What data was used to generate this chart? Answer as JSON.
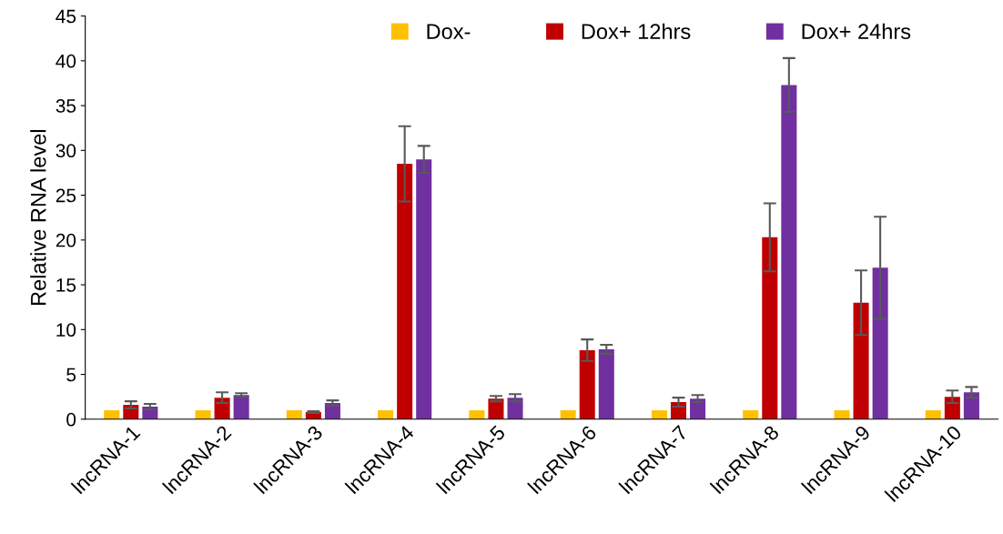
{
  "chart_data": {
    "type": "bar",
    "ylabel": "Relative RNA level",
    "categories": [
      "lncRNA-1",
      "lncRNA-2",
      "lncRNA-3",
      "lncRNA-4",
      "lncRNA-5",
      "lncRNA-6",
      "lncRNA-7",
      "lncRNA-8",
      "lncRNA-9",
      "lncRNA-10"
    ],
    "series": [
      {
        "name": "Dox-",
        "color": "#ffc000",
        "values": [
          1,
          1,
          1,
          1,
          1,
          1,
          1,
          1,
          1,
          1
        ]
      },
      {
        "name": "Dox+ 12hrs",
        "color": "#c00000",
        "values": [
          1.6,
          2.4,
          0.8,
          28.5,
          2.3,
          7.7,
          1.9,
          20.3,
          13.0,
          2.5
        ],
        "errors": [
          0.4,
          0.6,
          0.1,
          4.2,
          0.3,
          1.2,
          0.5,
          3.8,
          3.6,
          0.7
        ]
      },
      {
        "name": "Dox+ 24hrs",
        "color": "#7030a0",
        "values": [
          1.4,
          2.7,
          1.8,
          29.0,
          2.4,
          7.8,
          2.3,
          37.3,
          16.9,
          3.0
        ],
        "errors": [
          0.3,
          0.2,
          0.3,
          1.5,
          0.4,
          0.5,
          0.4,
          3.0,
          5.7,
          0.6
        ]
      }
    ],
    "ylim": [
      0,
      45
    ],
    "yticks": [
      0,
      5,
      10,
      15,
      20,
      25,
      30,
      35,
      40,
      45
    ],
    "grid": false,
    "legend": "top"
  }
}
